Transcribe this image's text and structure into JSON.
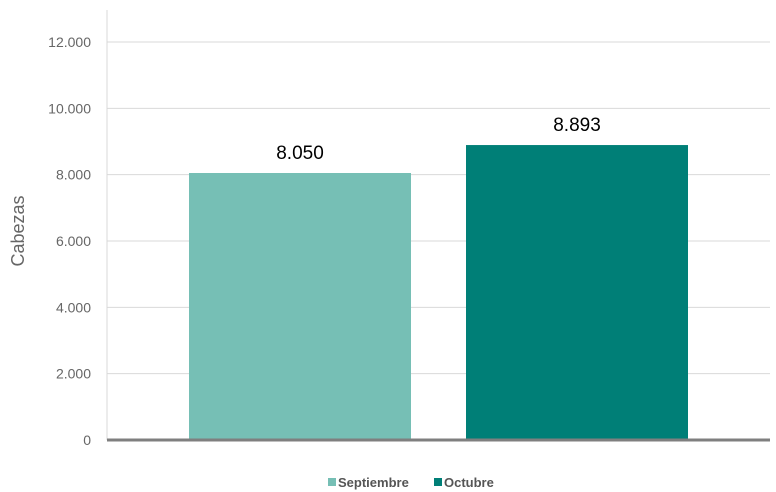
{
  "chart_data": {
    "type": "bar",
    "categories": [
      "Septiembre",
      "Octubre"
    ],
    "values": [
      8050,
      8893
    ],
    "value_labels": [
      "8.050",
      "8.893"
    ],
    "ylabel": "Cabezas",
    "ylim": [
      0,
      12000
    ],
    "y_ticks": [
      0,
      2000,
      4000,
      6000,
      8000,
      10000,
      12000
    ],
    "y_tick_labels": [
      "0",
      "2.000",
      "4.000",
      "6.000",
      "8.000",
      "10.000",
      "12.000"
    ],
    "grid": true,
    "legend_position": "bottom",
    "colors": [
      "#76BFB5",
      "#007F77"
    ]
  }
}
